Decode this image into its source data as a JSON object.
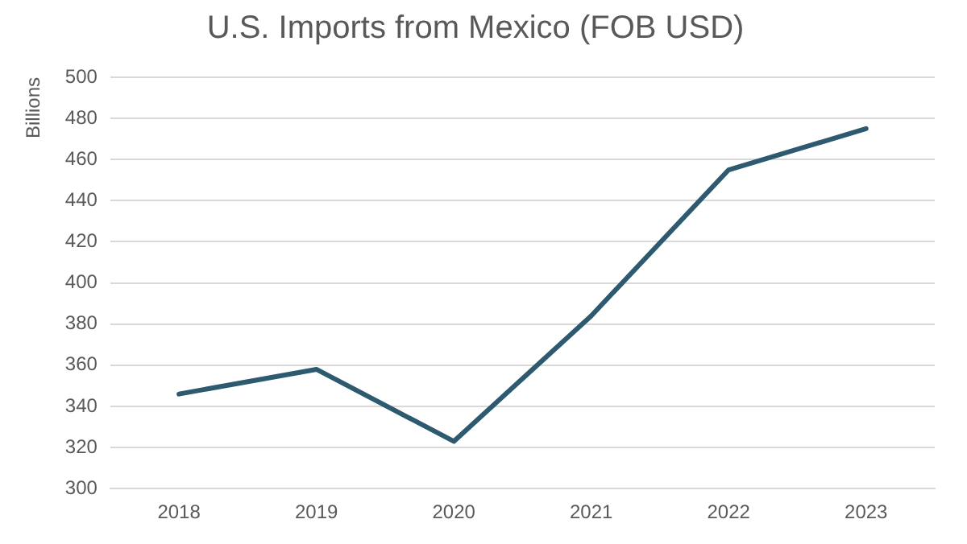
{
  "chart_data": {
    "type": "line",
    "title": "U.S. Imports from Mexico (FOB USD)",
    "ylabel": "Billions",
    "categories": [
      "2018",
      "2019",
      "2020",
      "2021",
      "2022",
      "2023"
    ],
    "series": [
      {
        "color": "#2e5a70",
        "values": [
          346,
          358,
          323,
          384,
          455,
          475
        ]
      }
    ],
    "ylim": [
      300,
      500
    ],
    "yticks": [
      300,
      320,
      340,
      360,
      380,
      400,
      420,
      440,
      460,
      480,
      500
    ],
    "grid": "y",
    "legend": false,
    "marker": "none",
    "line_style": "solid"
  }
}
